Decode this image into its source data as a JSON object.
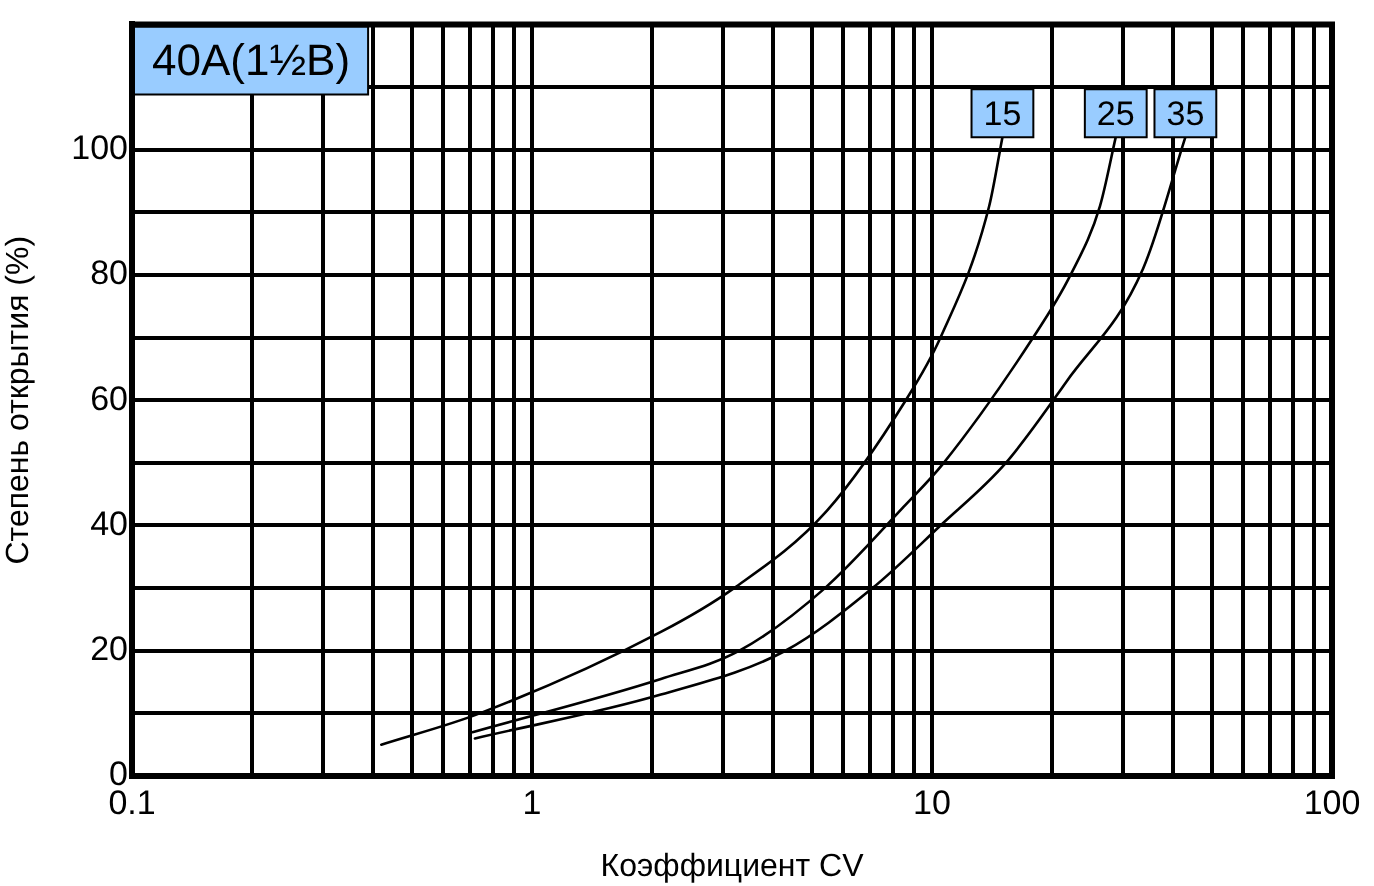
{
  "chart_data": {
    "type": "line",
    "xlabel": "Коэффициент CV",
    "ylabel": "Степень открытия (%)",
    "annotations": [
      "40A(1½B)"
    ],
    "log": "x",
    "grid": true,
    "legend": "top right",
    "marker": "none",
    "line_style": "solid",
    "xlim": [
      0.1,
      100
    ],
    "xticks": [
      0.1,
      {
        "value": 0.2,
        "label": null
      },
      {
        "value": 0.3,
        "label": null
      },
      {
        "value": 0.4,
        "label": null
      },
      {
        "value": 0.5,
        "label": null
      },
      {
        "value": 0.6,
        "label": null
      },
      {
        "value": 0.7,
        "label": null
      },
      {
        "value": 0.8,
        "label": null
      },
      {
        "value": 0.9,
        "label": null
      },
      1,
      {
        "value": 2,
        "label": null
      },
      {
        "value": 3,
        "label": null
      },
      {
        "value": 4,
        "label": null
      },
      {
        "value": 5,
        "label": null
      },
      {
        "value": 6,
        "label": null
      },
      {
        "value": 7,
        "label": null
      },
      {
        "value": 8,
        "label": null
      },
      {
        "value": 9,
        "label": null
      },
      10,
      {
        "value": 20,
        "label": null
      },
      {
        "value": 30,
        "label": null
      },
      {
        "value": 40,
        "label": null
      },
      {
        "value": 50,
        "label": null
      },
      {
        "value": 60,
        "label": null
      },
      {
        "value": 70,
        "label": null
      },
      {
        "value": 80,
        "label": null
      },
      {
        "value": 90,
        "label": null
      },
      100
    ],
    "ylim": [
      0,
      120
    ],
    "yticks": [
      0,
      {
        "value": 10,
        "label": null
      },
      20,
      {
        "value": 30,
        "label": null
      },
      40,
      {
        "value": 50,
        "label": null
      },
      60,
      {
        "value": 70,
        "label": null
      },
      80,
      {
        "value": 90,
        "label": null
      },
      100,
      {
        "value": 110,
        "label": null
      }
    ],
    "series": [
      {
        "name": "15",
        "color": "#000000",
        "x": [
          0.42,
          0.74,
          2.1,
          3.2,
          5.4,
          8.6,
          10.5,
          13.9,
          15
        ],
        "values": [
          5,
          10,
          23,
          30,
          42,
          60,
          70,
          91,
          102
        ]
      },
      {
        "name": "25",
        "color": "#000000",
        "x": [
          0.71,
          2.1,
          3.3,
          5.4,
          8.5,
          10.7,
          17.9,
          22.2,
          26.3,
          28.8
        ],
        "values": [
          7,
          15.5,
          20,
          30,
          43,
          50,
          70,
          80,
          91,
          102
        ]
      },
      {
        "name": "35",
        "color": "#000000",
        "x": [
          0.72,
          2.1,
          4.3,
          7.1,
          10.5,
          15.3,
          21.7,
          33.7,
          43
        ],
        "values": [
          6,
          13,
          20,
          30,
          40,
          50,
          63,
          81,
          102
        ]
      }
    ]
  }
}
